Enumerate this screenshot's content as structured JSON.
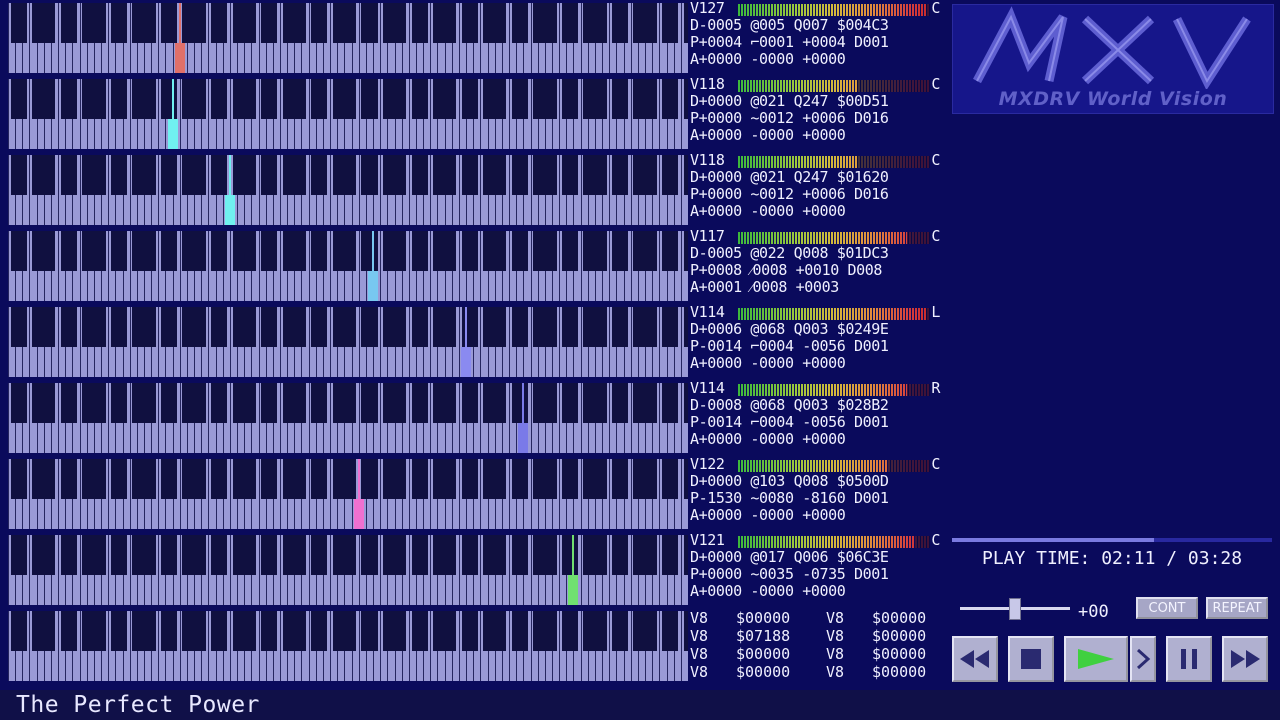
{
  "tracks": [
    {
      "vol": "V127",
      "pan": "C",
      "line1": "D-0005 @005 Q007 $004C3",
      "line2": "P+0004 ⌐0001 +0004 D001",
      "line3": "A+0000 -0000 +0000",
      "meter_level": 0.98,
      "note": {
        "key": 24,
        "color": "#e0706a"
      }
    },
    {
      "vol": "V118",
      "pan": "C",
      "line1": "D+0000 @021 Q247 $00D51",
      "line2": "P+0000 ~0012 +0006 D016",
      "line3": "A+0000 -0000 +0000",
      "meter_level": 0.62,
      "note": {
        "key": 23,
        "color": "#70f0f0"
      }
    },
    {
      "vol": "V118",
      "pan": "C",
      "line1": "D+0000 @021 Q247 $01620",
      "line2": "P+0000 ~0012 +0006 D016",
      "line3": "A+0000 -0000 +0000",
      "meter_level": 0.62,
      "note": {
        "key": 31,
        "color": "#70f0f0"
      }
    },
    {
      "vol": "V117",
      "pan": "C",
      "line1": "D-0005 @022 Q008 $01DC3",
      "line2": "P+0008 ⁄0008 +0010 D008",
      "line3": "A+0001 ⁄0008 +0003",
      "meter_level": 0.88,
      "note": {
        "key": 51,
        "color": "#78c8f0"
      }
    },
    {
      "vol": "V114",
      "pan": "L",
      "line1": "D+0006 @068 Q003 $0249E",
      "line2": "P-0014 ⌐0004 -0056 D001",
      "line3": "A+0000 -0000 +0000",
      "meter_level": 0.98,
      "note": {
        "key": 64,
        "color": "#8a8af0"
      }
    },
    {
      "vol": "V114",
      "pan": "R",
      "line1": "D-0008 @068 Q003 $028B2",
      "line2": "P-0014 ⌐0004 -0056 D001",
      "line3": "A+0000 -0000 +0000",
      "meter_level": 0.88,
      "note": {
        "key": 72,
        "color": "#7a7ae8"
      }
    },
    {
      "vol": "V122",
      "pan": "C",
      "line1": "D+0000 @103 Q008 $0500D",
      "line2": "P-1530 ~0080 -8160 D001",
      "line3": "A+0000 -0000 +0000",
      "meter_level": 0.78,
      "note": {
        "key": 49,
        "color": "#f070d0"
      }
    },
    {
      "vol": "V121",
      "pan": "C",
      "line1": "D+0000 @017 Q006 $06C3E",
      "line2": "P+0000 ~0035 -0735 D001",
      "line3": "A+0000 -0000 +0000",
      "meter_level": 0.92,
      "note": {
        "key": 79,
        "color": "#70e070"
      }
    }
  ],
  "extra_voices": [
    [
      "V8",
      "$00000",
      "V8",
      "$00000"
    ],
    [
      "V8",
      "$07188",
      "V8",
      "$00000"
    ],
    [
      "V8",
      "$00000",
      "V8",
      "$00000"
    ],
    [
      "V8",
      "$00000",
      "V8",
      "$00000"
    ]
  ],
  "logo": {
    "letters": "MXV",
    "subtitle": "MXDRV World Vision"
  },
  "playback": {
    "label": "PLAY TIME:",
    "current": "02:11",
    "total": "03:28",
    "progress": 0.63,
    "pitch_offset": "+00",
    "pitch_slider": 0.5
  },
  "buttons": {
    "cont": "CONT",
    "repeat": "REPEAT"
  },
  "controls": [
    "rewind-icon",
    "stop-icon",
    "play-icon",
    "step-icon",
    "pause-icon",
    "fast-forward-icon"
  ],
  "song_title": "The Perfect Power",
  "colors": {
    "background": "#0a0a5c",
    "keys": "#9a9ad6",
    "play_active": "#40d040"
  }
}
